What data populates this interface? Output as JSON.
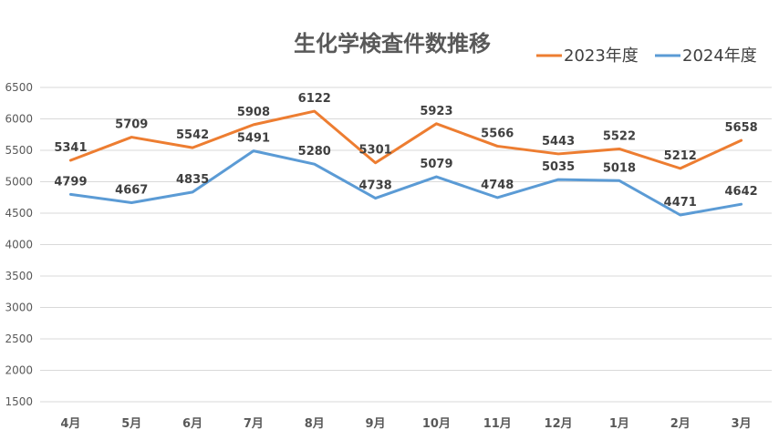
{
  "chart_data": {
    "type": "line",
    "title": "生化学検査件数推移",
    "xlabel": "",
    "ylabel": "",
    "categories": [
      "4月",
      "5月",
      "6月",
      "7月",
      "8月",
      "9月",
      "10月",
      "11月",
      "12月",
      "1月",
      "2月",
      "3月"
    ],
    "ylim": [
      1500,
      6500
    ],
    "yticks": [
      1500,
      2000,
      2500,
      3000,
      3500,
      4000,
      4500,
      5000,
      5500,
      6000,
      6500
    ],
    "grid": true,
    "legend_position": "top-right",
    "data_labels": true,
    "series": [
      {
        "name": "2023年度",
        "color": "#ED7D31",
        "values": [
          5341,
          5709,
          5542,
          5908,
          6122,
          5301,
          5923,
          5566,
          5443,
          5522,
          5212,
          5658
        ]
      },
      {
        "name": "2024年度",
        "color": "#5B9BD5",
        "values": [
          4799,
          4667,
          4835,
          5491,
          5280,
          4738,
          5079,
          4748,
          5035,
          5018,
          4471,
          4642
        ]
      }
    ]
  }
}
